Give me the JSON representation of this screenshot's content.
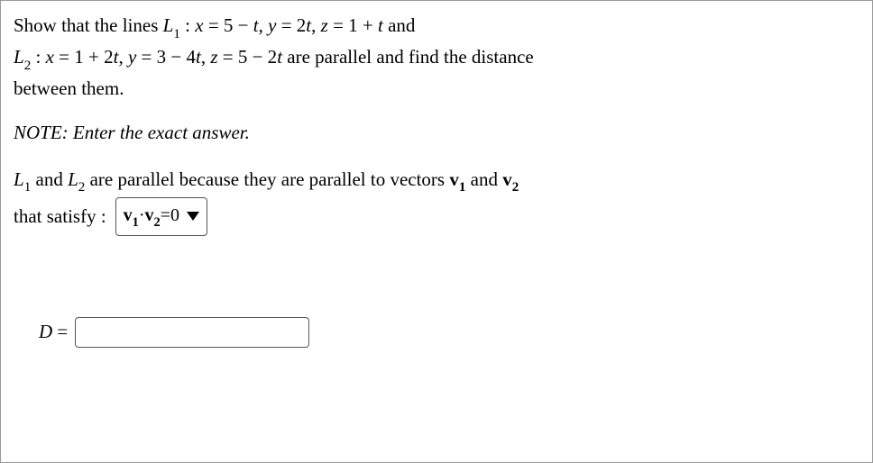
{
  "problem": {
    "line1_prefix": "Show that the lines ",
    "L1_label": "L",
    "L1_sub": "1",
    "colon_space": " : ",
    "x_eq": "x",
    "eq": " = ",
    "L1_x": "5 − ",
    "t": "t",
    "comma": ",  ",
    "y_eq": "y",
    "L1_y": "2",
    "z_eq": "z",
    "L1_z": "1 + ",
    "and": " and",
    "L2_label": "L",
    "L2_sub": "2",
    "L2_x": "1 + 2",
    "L2_y": "3 − 4",
    "L2_z": "5 − 2",
    "line2_suffix": " are parallel and find the distance",
    "line3": "between them."
  },
  "note": {
    "text": "NOTE: Enter the exact answer."
  },
  "explanation": {
    "prefix": " and ",
    "mid1": " are parallel because they are parallel to vectors ",
    "v": "v",
    "sub1": "1",
    "sub2": "2",
    "and": " and ",
    "suffix": "that satisfy :"
  },
  "dropdown": {
    "v": "v",
    "sub1": "1",
    "dot": "·",
    "sub2": "2",
    "eq0": "=0"
  },
  "answer": {
    "D": "D",
    "eq": " ="
  }
}
